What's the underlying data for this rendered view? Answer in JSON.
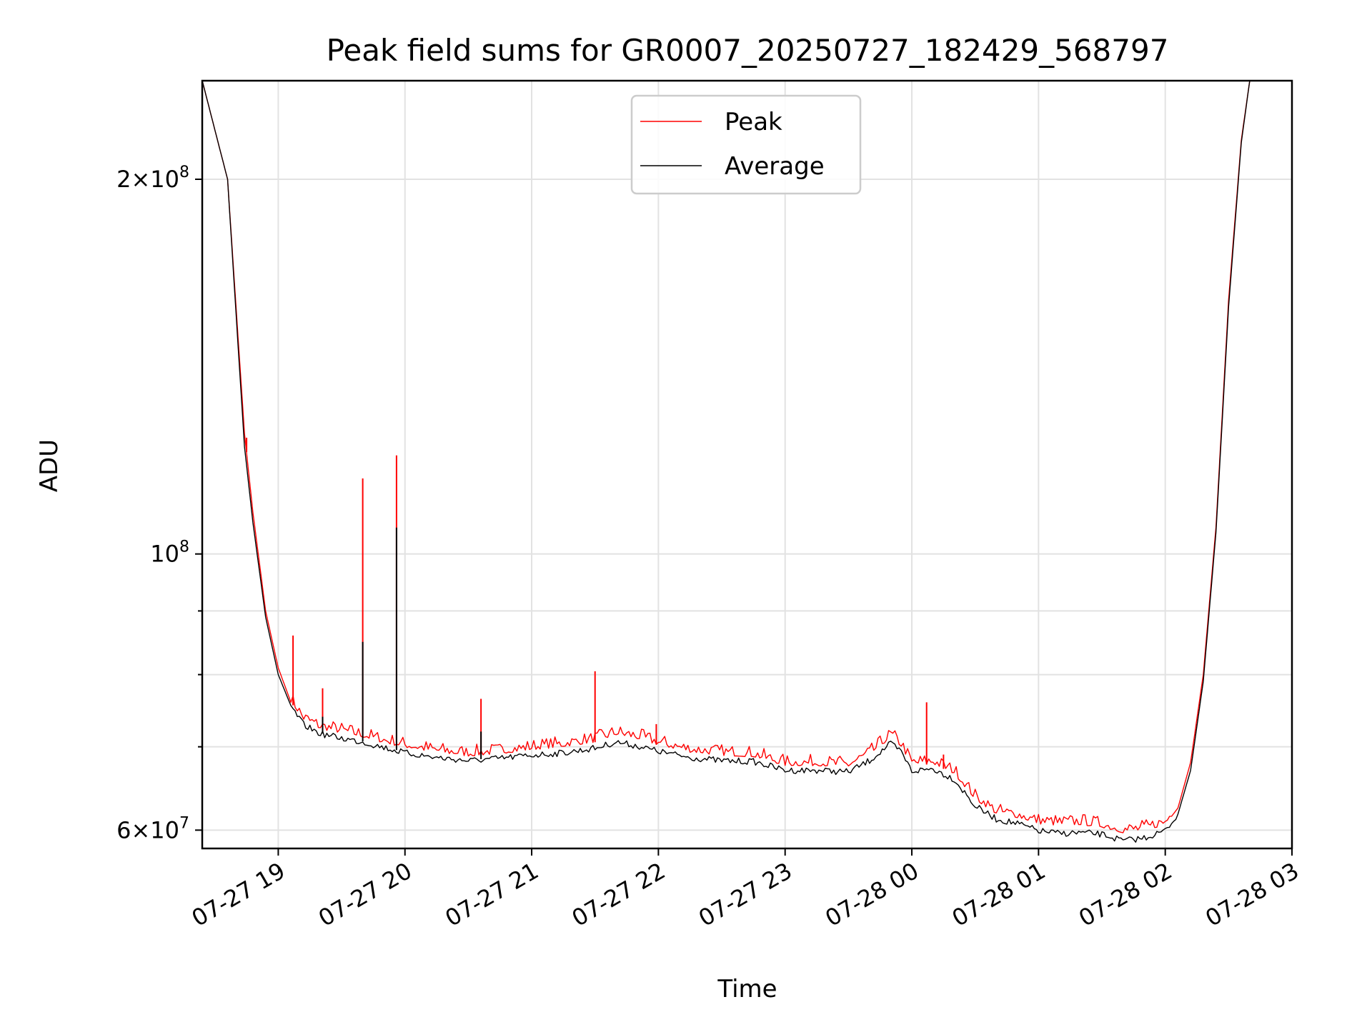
{
  "chart_data": {
    "type": "line",
    "title": "Peak field sums for GR0007_20250727_182429_568797",
    "xlabel": "Time",
    "ylabel": "ADU",
    "y_scale": "log",
    "ylim": [
      58000000,
      240000000
    ],
    "xlim": [
      "2025-07-27 18:24",
      "2025-07-28 03:00"
    ],
    "x_tick_labels": [
      "07-27 19",
      "07-27 20",
      "07-27 21",
      "07-27 22",
      "07-27 23",
      "07-28 00",
      "07-28 01",
      "07-28 02",
      "07-28 03"
    ],
    "x_ticks": [
      "2025-07-27 19:00",
      "2025-07-27 20:00",
      "2025-07-27 21:00",
      "2025-07-27 22:00",
      "2025-07-27 23:00",
      "2025-07-28 00:00",
      "2025-07-28 01:00",
      "2025-07-28 02:00",
      "2025-07-28 03:00"
    ],
    "y_ticks_major": [
      {
        "value": 60000000,
        "mantissa": "6",
        "exp": "7"
      },
      {
        "value": 100000000,
        "mantissa": "",
        "exp": "8"
      },
      {
        "value": 200000000,
        "mantissa": "2",
        "exp": "8"
      }
    ],
    "y_ticks_minor": [
      70000000,
      80000000,
      90000000
    ],
    "grid": true,
    "legend_position": "upper-center",
    "series": [
      {
        "name": "Peak",
        "color": "#ff0000",
        "points": [
          [
            "2025-07-27 18:24",
            240000000
          ],
          [
            "2025-07-27 18:36",
            200000000
          ],
          [
            "2025-07-27 18:44",
            125000000
          ],
          [
            "2025-07-27 18:48",
            108000000
          ],
          [
            "2025-07-27 18:54",
            90000000
          ],
          [
            "2025-07-27 19:00",
            81000000
          ],
          [
            "2025-07-27 19:06",
            76000000
          ],
          [
            "2025-07-27 19:12",
            73500000
          ],
          [
            "2025-07-27 19:20",
            72300000
          ],
          [
            "2025-07-27 19:30",
            71800000
          ],
          [
            "2025-07-27 19:40",
            71200000
          ],
          [
            "2025-07-27 19:50",
            70500000
          ],
          [
            "2025-07-27 20:00",
            69900000
          ],
          [
            "2025-07-27 20:15",
            69200000
          ],
          [
            "2025-07-27 20:30",
            68800000
          ],
          [
            "2025-07-27 20:45",
            69100000
          ],
          [
            "2025-07-27 21:00",
            69600000
          ],
          [
            "2025-07-27 21:15",
            70000000
          ],
          [
            "2025-07-27 21:30",
            70600000
          ],
          [
            "2025-07-27 21:40",
            71500000
          ],
          [
            "2025-07-27 21:50",
            71000000
          ],
          [
            "2025-07-27 22:00",
            70200000
          ],
          [
            "2025-07-27 22:15",
            69300000
          ],
          [
            "2025-07-27 22:30",
            68900000
          ],
          [
            "2025-07-27 22:45",
            68700000
          ],
          [
            "2025-07-27 23:00",
            67600000
          ],
          [
            "2025-07-27 23:15",
            67600000
          ],
          [
            "2025-07-27 23:30",
            67400000
          ],
          [
            "2025-07-27 23:40",
            68800000
          ],
          [
            "2025-07-27 23:50",
            71200000
          ],
          [
            "2025-07-27 23:55",
            70000000
          ],
          [
            "2025-07-28 00:00",
            67600000
          ],
          [
            "2025-07-28 00:10",
            67800000
          ],
          [
            "2025-07-28 00:20",
            66600000
          ],
          [
            "2025-07-28 00:30",
            63500000
          ],
          [
            "2025-07-28 00:40",
            61800000
          ],
          [
            "2025-07-28 00:50",
            61400000
          ],
          [
            "2025-07-28 01:00",
            60700000
          ],
          [
            "2025-07-28 01:10",
            60500000
          ],
          [
            "2025-07-28 01:20",
            60600000
          ],
          [
            "2025-07-28 01:30",
            60300000
          ],
          [
            "2025-07-28 01:40",
            59700000
          ],
          [
            "2025-07-28 01:50",
            59900000
          ],
          [
            "2025-07-28 02:00",
            60600000
          ],
          [
            "2025-07-28 02:06",
            62500000
          ],
          [
            "2025-07-28 02:12",
            68000000
          ],
          [
            "2025-07-28 02:18",
            80000000
          ],
          [
            "2025-07-28 02:24",
            105000000
          ],
          [
            "2025-07-28 02:30",
            160000000
          ],
          [
            "2025-07-28 02:36",
            215000000
          ],
          [
            "2025-07-28 02:40",
            240000000
          ]
        ],
        "spikes": [
          [
            "2025-07-27 18:45",
            124000000
          ],
          [
            "2025-07-27 19:07",
            86000000
          ],
          [
            "2025-07-27 19:21",
            78000000
          ],
          [
            "2025-07-27 19:40",
            115000000
          ],
          [
            "2025-07-27 19:56",
            120000000
          ],
          [
            "2025-07-27 20:36",
            76500000
          ],
          [
            "2025-07-27 21:30",
            80500000
          ],
          [
            "2025-07-27 21:59",
            73000000
          ],
          [
            "2025-07-28 00:07",
            76000000
          ],
          [
            "2025-07-28 00:15",
            69000000
          ]
        ]
      },
      {
        "name": "Average",
        "color": "#000000",
        "points": [
          [
            "2025-07-27 18:24",
            240000000
          ],
          [
            "2025-07-27 18:36",
            200000000
          ],
          [
            "2025-07-27 18:44",
            122000000
          ],
          [
            "2025-07-27 18:48",
            106000000
          ],
          [
            "2025-07-27 18:54",
            89000000
          ],
          [
            "2025-07-27 19:00",
            80000000
          ],
          [
            "2025-07-27 19:06",
            75500000
          ],
          [
            "2025-07-27 19:12",
            73000000
          ],
          [
            "2025-07-27 19:20",
            71800000
          ],
          [
            "2025-07-27 19:30",
            71200000
          ],
          [
            "2025-07-27 19:40",
            70700000
          ],
          [
            "2025-07-27 19:50",
            70000000
          ],
          [
            "2025-07-27 20:00",
            69300000
          ],
          [
            "2025-07-27 20:15",
            68700000
          ],
          [
            "2025-07-27 20:30",
            68300000
          ],
          [
            "2025-07-27 20:45",
            68600000
          ],
          [
            "2025-07-27 21:00",
            69000000
          ],
          [
            "2025-07-27 21:15",
            69300000
          ],
          [
            "2025-07-27 21:30",
            69900000
          ],
          [
            "2025-07-27 21:40",
            70700000
          ],
          [
            "2025-07-27 21:50",
            70200000
          ],
          [
            "2025-07-27 22:00",
            69500000
          ],
          [
            "2025-07-27 22:15",
            68700000
          ],
          [
            "2025-07-27 22:30",
            68300000
          ],
          [
            "2025-07-27 22:45",
            68200000
          ],
          [
            "2025-07-27 23:00",
            67100000
          ],
          [
            "2025-07-27 23:15",
            67100000
          ],
          [
            "2025-07-27 23:30",
            66900000
          ],
          [
            "2025-07-27 23:40",
            68300000
          ],
          [
            "2025-07-27 23:50",
            70500000
          ],
          [
            "2025-07-27 23:55",
            69400000
          ],
          [
            "2025-07-28 00:00",
            67000000
          ],
          [
            "2025-07-28 00:10",
            67300000
          ],
          [
            "2025-07-28 00:20",
            66000000
          ],
          [
            "2025-07-28 00:30",
            62800000
          ],
          [
            "2025-07-28 00:40",
            61300000
          ],
          [
            "2025-07-28 00:50",
            60800000
          ],
          [
            "2025-07-28 01:00",
            60000000
          ],
          [
            "2025-07-28 01:10",
            59700000
          ],
          [
            "2025-07-28 01:20",
            59800000
          ],
          [
            "2025-07-28 01:30",
            59600000
          ],
          [
            "2025-07-28 01:40",
            58900000
          ],
          [
            "2025-07-28 01:50",
            59200000
          ],
          [
            "2025-07-28 02:00",
            60000000
          ],
          [
            "2025-07-28 02:06",
            61800000
          ],
          [
            "2025-07-28 02:12",
            67000000
          ],
          [
            "2025-07-28 02:18",
            79000000
          ],
          [
            "2025-07-28 02:24",
            104000000
          ],
          [
            "2025-07-28 02:30",
            158000000
          ],
          [
            "2025-07-28 02:36",
            214000000
          ],
          [
            "2025-07-28 02:40",
            240000000
          ]
        ],
        "spikes": [
          [
            "2025-07-27 18:45",
            118000000
          ],
          [
            "2025-07-27 19:21",
            74000000
          ],
          [
            "2025-07-27 19:40",
            85000000
          ],
          [
            "2025-07-27 19:56",
            105000000
          ],
          [
            "2025-07-27 20:36",
            72000000
          ]
        ]
      }
    ]
  }
}
